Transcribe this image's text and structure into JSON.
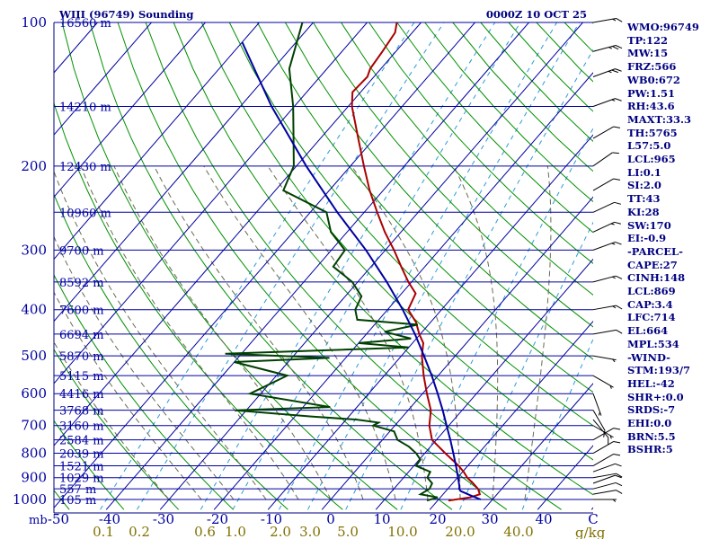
{
  "chart_data": {
    "type": "skew-t",
    "title": "WIII (96749) Sounding",
    "datetime": "0000Z 10 OCT 25",
    "pressure_unit": "mb",
    "temperature_unit": "C",
    "mixing_ratio_unit": "g/kg",
    "pressure_range": [
      1000,
      100
    ],
    "temperature_range": [
      -50,
      50
    ],
    "pressure_ticks": [
      "100",
      "200",
      "300",
      "400",
      "500",
      "600",
      "700",
      "800",
      "900",
      "1000"
    ],
    "temperature_ticks": [
      "-50",
      "-40",
      "-30",
      "-20",
      "-10",
      "0",
      "10",
      "20",
      "30",
      "40",
      "C"
    ],
    "mixing_ratio_ticks": [
      "0.1",
      "0.2",
      "0.6",
      "1.0",
      "2.0",
      "3.0",
      "5.0",
      "10.0",
      "20.0",
      "40.0"
    ],
    "height_levels": [
      {
        "label": "16560 m",
        "p": 100
      },
      {
        "label": "14210 m",
        "p": 150
      },
      {
        "label": "12430 m",
        "p": 200
      },
      {
        "label": "10960 m",
        "p": 250
      },
      {
        "label": "9700 m",
        "p": 300
      },
      {
        "label": "8592 m",
        "p": 350
      },
      {
        "label": "7600 m",
        "p": 400
      },
      {
        "label": "6694 m",
        "p": 450
      },
      {
        "label": "5870 m",
        "p": 500
      },
      {
        "label": "5115 m",
        "p": 550
      },
      {
        "label": "4416 m",
        "p": 600
      },
      {
        "label": "3768 m",
        "p": 650
      },
      {
        "label": "3160 m",
        "p": 700
      },
      {
        "label": "2584 m",
        "p": 750
      },
      {
        "label": "2039 m",
        "p": 800
      },
      {
        "label": "1521 m",
        "p": 850
      },
      {
        "label": "1029 m",
        "p": 900
      },
      {
        "label": "557 m",
        "p": 950
      },
      {
        "label": "105 m",
        "p": 1000
      }
    ],
    "series": [
      {
        "name": "Temperature",
        "color": "#aa0000",
        "points": [
          [
            1005,
            22
          ],
          [
            990,
            25.5
          ],
          [
            975,
            26.8
          ],
          [
            950,
            25.6
          ],
          [
            925,
            23.8
          ],
          [
            900,
            21.8
          ],
          [
            875,
            20.2
          ],
          [
            850,
            18.3
          ],
          [
            800,
            13.8
          ],
          [
            750,
            9.2
          ],
          [
            700,
            6.4
          ],
          [
            650,
            4.2
          ],
          [
            600,
            0.8
          ],
          [
            550,
            -2.7
          ],
          [
            500,
            -6.2
          ],
          [
            470,
            -8.0
          ],
          [
            450,
            -10.2
          ],
          [
            425,
            -12.7
          ],
          [
            400,
            -16.2
          ],
          [
            370,
            -17.4
          ],
          [
            350,
            -20.6
          ],
          [
            325,
            -24.4
          ],
          [
            300,
            -28.4
          ],
          [
            275,
            -33.0
          ],
          [
            250,
            -37.6
          ],
          [
            225,
            -42.5
          ],
          [
            200,
            -47.5
          ],
          [
            175,
            -53.0
          ],
          [
            150,
            -59.3
          ],
          [
            140,
            -61.5
          ],
          [
            130,
            -61.2
          ],
          [
            125,
            -62.0
          ],
          [
            115,
            -62.5
          ],
          [
            105,
            -63.2
          ],
          [
            100,
            -64.5
          ]
        ]
      },
      {
        "name": "Dewpoint",
        "color": "#004000",
        "points": [
          [
            1005,
            18
          ],
          [
            990,
            19.5
          ],
          [
            975,
            15.8
          ],
          [
            950,
            16.6
          ],
          [
            925,
            16.2
          ],
          [
            900,
            14.4
          ],
          [
            875,
            14.0
          ],
          [
            850,
            10.4
          ],
          [
            825,
            10.2
          ],
          [
            800,
            8.4
          ],
          [
            775,
            6.0
          ],
          [
            750,
            2.8
          ],
          [
            720,
            0.8
          ],
          [
            700,
            -4.0
          ],
          [
            690,
            -3.5
          ],
          [
            680,
            -8.0
          ],
          [
            670,
            -17.0
          ],
          [
            650,
            -32.0
          ],
          [
            640,
            -15.0
          ],
          [
            600,
            -32.0
          ],
          [
            550,
            -28.0
          ],
          [
            515,
            -40.0
          ],
          [
            505,
            -23.0
          ],
          [
            495,
            -43.0
          ],
          [
            480,
            -10.0
          ],
          [
            470,
            -20.0
          ],
          [
            460,
            -11.0
          ],
          [
            445,
            -17.0
          ],
          [
            430,
            -12.0
          ],
          [
            420,
            -24.0
          ],
          [
            400,
            -26.0
          ],
          [
            375,
            -27.0
          ],
          [
            350,
            -31.0
          ],
          [
            325,
            -37.0
          ],
          [
            300,
            -37.5
          ],
          [
            275,
            -43.0
          ],
          [
            250,
            -47.0
          ],
          [
            225,
            -58.5
          ],
          [
            200,
            -60.5
          ],
          [
            175,
            -65.0
          ],
          [
            150,
            -70.2
          ],
          [
            125,
            -77.0
          ],
          [
            100,
            -82.0
          ]
        ]
      },
      {
        "name": "Parcel",
        "color": "#0000a0",
        "points": [
          [
            1000,
            27.8
          ],
          [
            980,
            25.2
          ],
          [
            960,
            22.7
          ],
          [
            950,
            22.1
          ],
          [
            940,
            21.8
          ],
          [
            900,
            20.1
          ],
          [
            850,
            17.8
          ],
          [
            800,
            15.3
          ],
          [
            750,
            12.6
          ],
          [
            700,
            9.6
          ],
          [
            650,
            6.4
          ],
          [
            600,
            2.8
          ],
          [
            550,
            -1.2
          ],
          [
            500,
            -5.8
          ],
          [
            450,
            -11.0
          ],
          [
            400,
            -17.2
          ],
          [
            350,
            -24.6
          ],
          [
            300,
            -33.6
          ],
          [
            250,
            -45.0
          ],
          [
            200,
            -58.2
          ],
          [
            150,
            -74.2
          ],
          [
            110,
            -90.0
          ]
        ]
      }
    ],
    "wind_barbs": [
      {
        "p": 1000,
        "dir": 90,
        "kt": 5
      },
      {
        "p": 975,
        "dir": 80,
        "kt": 10
      },
      {
        "p": 950,
        "dir": 75,
        "kt": 10
      },
      {
        "p": 925,
        "dir": 70,
        "kt": 10
      },
      {
        "p": 900,
        "dir": 80,
        "kt": 10
      },
      {
        "p": 875,
        "dir": 70,
        "kt": 10
      },
      {
        "p": 850,
        "dir": 60,
        "kt": 10
      },
      {
        "p": 800,
        "dir": 60,
        "kt": 10
      },
      {
        "p": 750,
        "dir": 60,
        "kt": 10
      },
      {
        "p": 700,
        "dir": 120,
        "kt": 5
      },
      {
        "p": 680,
        "dir": 140,
        "kt": 10
      },
      {
        "p": 650,
        "dir": 150,
        "kt": 10
      },
      {
        "p": 600,
        "dir": 160,
        "kt": 5
      },
      {
        "p": 550,
        "dir": 120,
        "kt": 5
      },
      {
        "p": 500,
        "dir": 100,
        "kt": 5
      },
      {
        "p": 450,
        "dir": 80,
        "kt": 10
      },
      {
        "p": 400,
        "dir": 80,
        "kt": 15
      },
      {
        "p": 350,
        "dir": 75,
        "kt": 15
      },
      {
        "p": 300,
        "dir": 70,
        "kt": 15
      },
      {
        "p": 275,
        "dir": 65,
        "kt": 15
      },
      {
        "p": 250,
        "dir": 65,
        "kt": 10
      },
      {
        "p": 225,
        "dir": 60,
        "kt": 10
      },
      {
        "p": 200,
        "dir": 55,
        "kt": 10
      },
      {
        "p": 175,
        "dir": 60,
        "kt": 10
      },
      {
        "p": 150,
        "dir": 70,
        "kt": 15
      },
      {
        "p": 130,
        "dir": 70,
        "kt": 25
      },
      {
        "p": 115,
        "dir": 75,
        "kt": 25
      },
      {
        "p": 100,
        "dir": 80,
        "kt": 15
      }
    ],
    "indices": [
      "WMO:96749",
      "TP:122",
      "MW:15",
      "FRZ:566",
      "WB0:672",
      "PW:1.51",
      "RH:43.6",
      "MAXT:33.3",
      "TH:5765",
      "L57:5.0",
      "LCL:965",
      "LI:0.1",
      "SI:2.0",
      "TT:43",
      "KI:28",
      "SW:170",
      "EI:-0.9",
      "-PARCEL-",
      "CAPE:27",
      "CINH:148",
      "LCL:869",
      "CAP:3.4",
      "LFC:714",
      "EL:664",
      "MPL:534",
      "-WIND-",
      "STM:193/7",
      "HEL:-42",
      "SHR+:0.0",
      "SRDS:-7",
      "EHI:0.0",
      "BRN:5.5",
      "BSHR:5"
    ]
  }
}
